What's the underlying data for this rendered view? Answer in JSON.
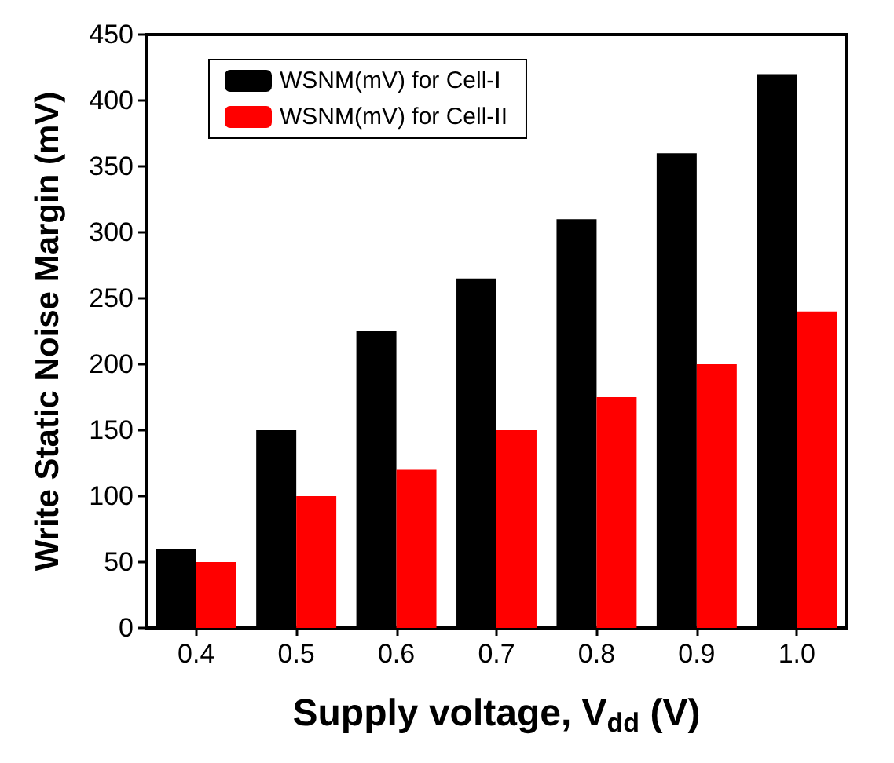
{
  "chart_data": {
    "type": "bar",
    "xlabel": "Supply voltage, V$_{dd}$ (V)",
    "ylabel": "Write Static Noise Margin (mV)",
    "categories": [
      "0.4",
      "0.5",
      "0.6",
      "0.7",
      "0.8",
      "0.9",
      "1.0"
    ],
    "series": [
      {
        "name": "WSNM(mV) for Cell-I",
        "color": "#000000",
        "values": [
          60,
          150,
          225,
          265,
          310,
          360,
          420
        ]
      },
      {
        "name": "WSNM(mV) for Cell-II",
        "color": "#ff0000",
        "values": [
          50,
          100,
          120,
          150,
          175,
          200,
          240
        ]
      }
    ],
    "ylim": [
      0,
      450
    ],
    "yticks": [
      0,
      50,
      100,
      150,
      200,
      250,
      300,
      350,
      400,
      450
    ],
    "grid": false,
    "legend": "top left"
  }
}
